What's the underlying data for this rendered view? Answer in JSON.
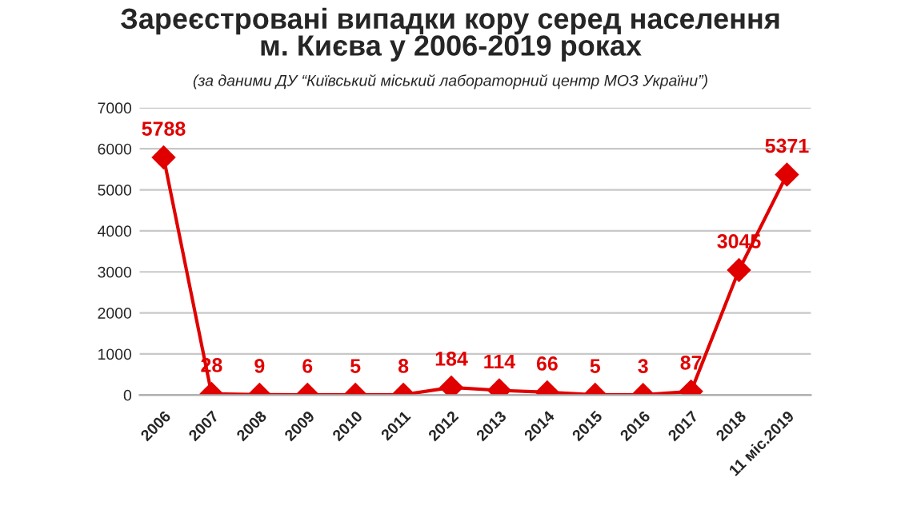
{
  "chart_data": {
    "type": "line",
    "title": "Зареєстровані випадки кору серед населення\nм. Києва у 2006-2019 роках",
    "subtitle": "(за даними ДУ “Київський міський лабораторний центр МОЗ України”)",
    "categories": [
      "2006",
      "2007",
      "2008",
      "2009",
      "2010",
      "2011",
      "2012",
      "2013",
      "2014",
      "2015",
      "2016",
      "2017",
      "2018",
      "11 міс.2019"
    ],
    "series": [
      {
        "color": "#e00000",
        "values": [
          5788,
          28,
          9,
          6,
          5,
          8,
          184,
          114,
          66,
          5,
          3,
          87,
          3045,
          5371
        ]
      }
    ],
    "ylim": [
      0,
      7000
    ],
    "yticks": [
      0,
      1000,
      2000,
      3000,
      4000,
      5000,
      6000,
      7000
    ],
    "grid": "y",
    "marker": "diamond",
    "line_style": "solid",
    "data_labels": true,
    "legend": false
  }
}
